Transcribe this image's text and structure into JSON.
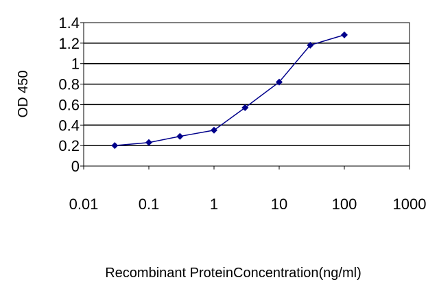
{
  "chart_data": {
    "type": "line",
    "title": "",
    "xlabel": "Recombinant ProteinConcentration(ng/ml)",
    "ylabel": "OD 450",
    "x_scale": "log",
    "xlim": [
      0.01,
      1000
    ],
    "ylim": [
      0,
      1.4
    ],
    "x_ticks": [
      0.01,
      0.1,
      1,
      10,
      100,
      1000
    ],
    "x_tick_labels": [
      "0.01",
      "0.1",
      "1",
      "10",
      "100",
      "1000"
    ],
    "y_ticks": [
      0,
      0.2,
      0.4,
      0.6,
      0.8,
      1,
      1.2,
      1.4
    ],
    "y_tick_labels": [
      "0",
      "0.2",
      "0.4",
      "0.6",
      "0.8",
      "1",
      "1.2",
      "1.4"
    ],
    "grid": "horizontal",
    "legend": "none",
    "series": [
      {
        "x": [
          0.03,
          0.1,
          0.3,
          1,
          3,
          10,
          30,
          100
        ],
        "y": [
          0.2,
          0.23,
          0.29,
          0.35,
          0.57,
          0.82,
          1.18,
          1.28
        ],
        "color": "#00008b",
        "marker": "diamond"
      }
    ]
  }
}
